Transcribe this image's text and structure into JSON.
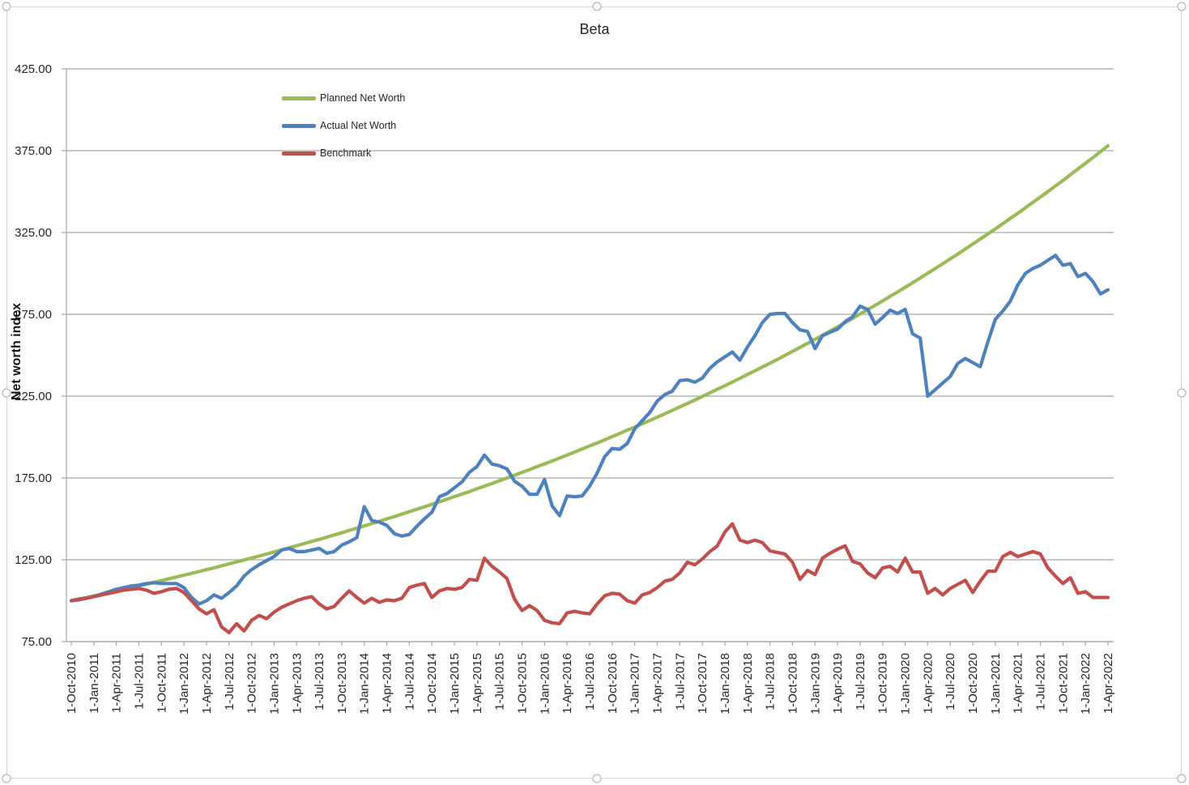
{
  "chart": {
    "title": "Beta",
    "y_axis_title": "Net worth index"
  },
  "chart_data": {
    "type": "line",
    "title": "Beta",
    "xlabel": "",
    "ylabel": "Net worth index",
    "ylim": [
      75,
      425
    ],
    "y_ticks": [
      "425.00",
      "375.00",
      "325.00",
      "275.00",
      "225.00",
      "175.00",
      "125.00",
      "75.00"
    ],
    "grid": "horizontal",
    "gridline_color": "#A6A6A6",
    "axis_text_color": "#262626",
    "legend_position": "floating-top-left-inside-plot",
    "x_start": "1-Oct-2010",
    "x_interval": "monthly",
    "x_tick_labels": [
      "1-Oct-2010",
      "1-Jan-2011",
      "1-Apr-2011",
      "1-Jul-2011",
      "1-Oct-2011",
      "1-Jan-2012",
      "1-Apr-2012",
      "1-Jul-2012",
      "1-Oct-2012",
      "1-Jan-2013",
      "1-Apr-2013",
      "1-Jul-2013",
      "1-Oct-2013",
      "1-Jan-2014",
      "1-Apr-2014",
      "1-Jul-2014",
      "1-Oct-2014",
      "1-Jan-2015",
      "1-Apr-2015",
      "1-Jul-2015",
      "1-Oct-2015",
      "1-Jan-2016",
      "1-Apr-2016",
      "1-Jul-2016",
      "1-Oct-2016",
      "1-Jan-2017",
      "1-Apr-2017",
      "1-Jul-2017",
      "1-Oct-2017",
      "1-Jan-2018",
      "1-Apr-2018",
      "1-Jul-2018",
      "1-Oct-2018",
      "1-Jan-2019",
      "1-Apr-2019",
      "1-Jul-2019",
      "1-Oct-2019",
      "1-Jan-2020",
      "1-Apr-2020",
      "1-Jul-2020",
      "1-Oct-2020",
      "1-Jan-2021",
      "1-Apr-2021",
      "1-Jul-2021",
      "1-Oct-2021",
      "1-Jan-2022",
      "1-Apr-2022"
    ],
    "series": [
      {
        "name": "Planned Net Worth",
        "color": "#9BBB59",
        "values": [
          100.0,
          101.0,
          101.9,
          102.9,
          103.9,
          104.9,
          106.0,
          107.0,
          108.0,
          109.1,
          110.1,
          111.2,
          112.3,
          113.4,
          114.5,
          115.6,
          116.7,
          117.8,
          119.0,
          120.1,
          121.3,
          122.5,
          123.7,
          124.9,
          126.1,
          127.3,
          128.5,
          129.8,
          131.0,
          132.3,
          133.6,
          134.9,
          136.2,
          137.5,
          138.8,
          140.2,
          141.5,
          142.9,
          144.3,
          145.7,
          147.1,
          148.5,
          150.0,
          151.4,
          152.9,
          154.4,
          155.9,
          157.4,
          158.9,
          160.4,
          162.0,
          163.6,
          165.1,
          166.7,
          168.4,
          170.0,
          171.6,
          173.3,
          175.0,
          176.7,
          178.4,
          180.1,
          181.9,
          183.6,
          185.4,
          187.2,
          189.0,
          190.8,
          192.7,
          194.6,
          196.4,
          198.3,
          200.3,
          202.2,
          204.2,
          206.1,
          208.1,
          210.1,
          212.2,
          214.2,
          216.3,
          218.4,
          220.5,
          222.6,
          224.8,
          227.0,
          229.2,
          231.4,
          233.6,
          235.9,
          238.2,
          240.5,
          242.8,
          245.1,
          247.5,
          249.9,
          252.3,
          254.8,
          257.2,
          259.7,
          262.2,
          264.8,
          267.3,
          269.9,
          272.5,
          275.2,
          277.8,
          280.5,
          283.2,
          286.0,
          288.7,
          291.5,
          294.3,
          297.2,
          300.1,
          303.0,
          305.9,
          308.9,
          311.8,
          314.9,
          317.9,
          321.0,
          324.1,
          327.2,
          330.4,
          333.6,
          336.8,
          340.1,
          343.4,
          346.7,
          350.0,
          353.4,
          356.8,
          360.3,
          363.8,
          367.3,
          370.8,
          374.4,
          378.0
        ]
      },
      {
        "name": "Actual Net Worth",
        "color": "#4F81BD",
        "values": [
          100,
          100.5,
          101.5,
          102.5,
          104,
          105.5,
          107,
          108,
          109,
          109.5,
          110.5,
          111,
          110.5,
          110.5,
          110.5,
          108,
          102,
          98,
          100,
          103.5,
          101.5,
          105,
          109,
          115,
          119,
          122,
          124.5,
          127,
          131,
          132,
          130,
          130,
          131,
          132,
          129,
          130,
          134,
          136,
          138.5,
          157.5,
          149,
          148,
          146,
          141,
          139.5,
          140.5,
          145.5,
          150,
          154,
          163.5,
          165.5,
          169,
          172.5,
          178.5,
          182,
          189,
          183.5,
          182.5,
          180.5,
          173,
          170,
          165,
          165,
          174,
          158,
          152,
          164,
          163.5,
          164,
          170,
          178,
          188,
          193,
          192.5,
          196,
          205,
          210,
          215,
          222,
          226,
          228,
          234.5,
          235,
          233.5,
          236,
          242,
          246,
          249,
          252,
          247,
          255,
          262,
          270,
          275,
          275.5,
          275.5,
          270,
          265.5,
          264.5,
          254,
          262,
          264,
          266,
          270.5,
          273.5,
          280,
          278,
          269,
          273,
          277.5,
          275.5,
          278,
          263,
          260.5,
          225,
          229,
          233,
          237,
          245,
          248,
          245.5,
          243,
          258,
          272,
          277,
          283,
          293,
          300,
          303,
          305,
          308,
          311,
          305,
          306,
          298,
          300,
          295,
          287.5,
          290
        ]
      },
      {
        "name": "Benchmark",
        "color": "#C0504D",
        "values": [
          100,
          101,
          101.5,
          102.5,
          103.5,
          104.5,
          105.5,
          106.5,
          107,
          107.5,
          106.5,
          104.5,
          105.5,
          107,
          107.5,
          105,
          100,
          95,
          92,
          94.5,
          84,
          80.5,
          86,
          81.5,
          88,
          91,
          89,
          93,
          96,
          98,
          100,
          101.5,
          102.5,
          98,
          95,
          96.5,
          101.5,
          106,
          102,
          98.5,
          101.5,
          99,
          100.5,
          100,
          101.5,
          108,
          109.5,
          110.5,
          102,
          106,
          107.5,
          107,
          108,
          113,
          112.5,
          126,
          121,
          117.5,
          113.5,
          101,
          94,
          97,
          94,
          88,
          86.5,
          86,
          92.5,
          93.5,
          92.5,
          92,
          98,
          103,
          104.5,
          104,
          100,
          98.5,
          103.5,
          105,
          108,
          112,
          113,
          117,
          123.5,
          122,
          125.5,
          130,
          133.5,
          142,
          147,
          137,
          135.5,
          137,
          135.5,
          130.5,
          129.5,
          128.5,
          123.5,
          113,
          118.5,
          116,
          126,
          129,
          131.5,
          133.5,
          124,
          122.5,
          117,
          114,
          120,
          121,
          117.5,
          126,
          117.5,
          117.5,
          104.5,
          107.5,
          103.5,
          107.5,
          110,
          112.5,
          105,
          112,
          118,
          118,
          127,
          129.5,
          127,
          128.5,
          130,
          128.5,
          120,
          115,
          110.5,
          114,
          104.5,
          105.5,
          102,
          102,
          102
        ]
      }
    ]
  }
}
